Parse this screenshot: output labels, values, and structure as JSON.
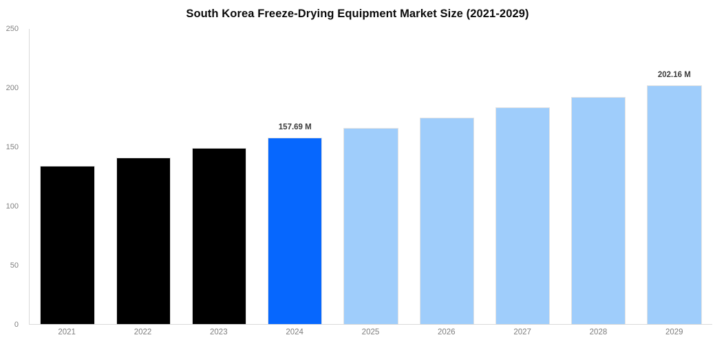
{
  "chart_data": {
    "type": "bar",
    "title": "South Korea Freeze-Drying Equipment Market Size (2021-2029)",
    "categories": [
      "2021",
      "2022",
      "2023",
      "2024",
      "2025",
      "2026",
      "2027",
      "2028",
      "2029"
    ],
    "values": [
      133.9,
      141.1,
      149.0,
      157.69,
      165.9,
      175.0,
      183.7,
      192.2,
      202.16
    ],
    "data_labels": [
      "",
      "",
      "",
      "157.69 M",
      "",
      "",
      "",
      "",
      "202.16 M"
    ],
    "bar_roles": [
      "historical",
      "historical",
      "historical",
      "current",
      "forecast",
      "forecast",
      "forecast",
      "forecast",
      "forecast"
    ],
    "unit_suffix": "M",
    "xlabel": "",
    "ylabel": "",
    "ylim": [
      0,
      250
    ],
    "yticks": [
      0,
      50,
      100,
      150,
      200,
      250
    ],
    "grid": false,
    "legend": "none",
    "colors": {
      "historical": "#000000",
      "current": "#0667fe",
      "forecast": "#9fcdfb",
      "axis_line": "#d9d9d9",
      "tick_label": "#7f7f7f",
      "data_label": "#3b3b3b",
      "title": "#0a0a0a",
      "background": "#ffffff"
    }
  }
}
